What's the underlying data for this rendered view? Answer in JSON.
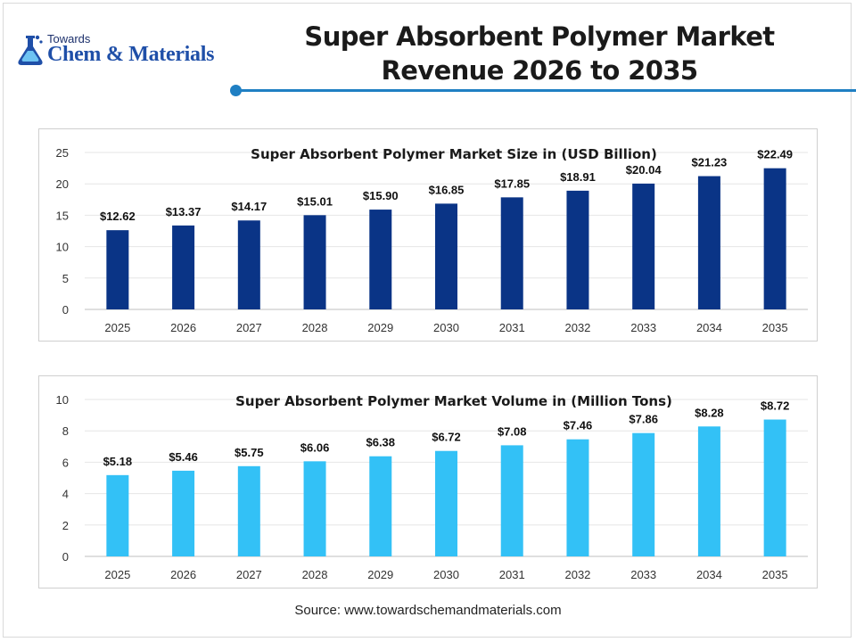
{
  "logo": {
    "top_text": "Towards",
    "name_text": "Chem & Materials",
    "icon": "flask-icon"
  },
  "title": {
    "line1": "Super Absorbent Polymer Market",
    "line2": "Revenue 2026 to 2035"
  },
  "colors": {
    "accent": "#1f7fc3",
    "series_size": "#0a3486",
    "series_volume": "#33c1f6"
  },
  "source": "Source: www.towardschemandmaterials.com",
  "chart_data": [
    {
      "type": "bar",
      "title": "Super Absorbent Polymer Market Size in (USD Billion)",
      "categories": [
        "2025",
        "2026",
        "2027",
        "2028",
        "2029",
        "2030",
        "2031",
        "2032",
        "2033",
        "2034",
        "2035"
      ],
      "values": [
        12.62,
        13.37,
        14.17,
        15.01,
        15.9,
        16.85,
        17.85,
        18.91,
        20.04,
        21.23,
        22.49
      ],
      "data_labels": [
        "$12.62",
        "$13.37",
        "$14.17",
        "$15.01",
        "$15.90",
        "$16.85",
        "$17.85",
        "$18.91",
        "$20.04",
        "$21.23",
        "$22.49"
      ],
      "yticks": [
        "0",
        "5",
        "10",
        "15",
        "20",
        "25"
      ],
      "ylim": [
        0,
        25
      ],
      "grid": true,
      "color": "#0a3486"
    },
    {
      "type": "bar",
      "title": "Super Absorbent Polymer Market Volume in (Million Tons)",
      "categories": [
        "2025",
        "2026",
        "2027",
        "2028",
        "2029",
        "2030",
        "2031",
        "2032",
        "2033",
        "2034",
        "2035"
      ],
      "values": [
        5.18,
        5.46,
        5.75,
        6.06,
        6.38,
        6.72,
        7.08,
        7.46,
        7.86,
        8.28,
        8.72
      ],
      "data_labels": [
        "$5.18",
        "$5.46",
        "$5.75",
        "$6.06",
        "$6.38",
        "$6.72",
        "$7.08",
        "$7.46",
        "$7.86",
        "$8.28",
        "$8.72"
      ],
      "yticks": [
        "0",
        "2",
        "4",
        "6",
        "8",
        "10"
      ],
      "ylim": [
        0,
        10
      ],
      "grid": true,
      "color": "#33c1f6"
    }
  ]
}
